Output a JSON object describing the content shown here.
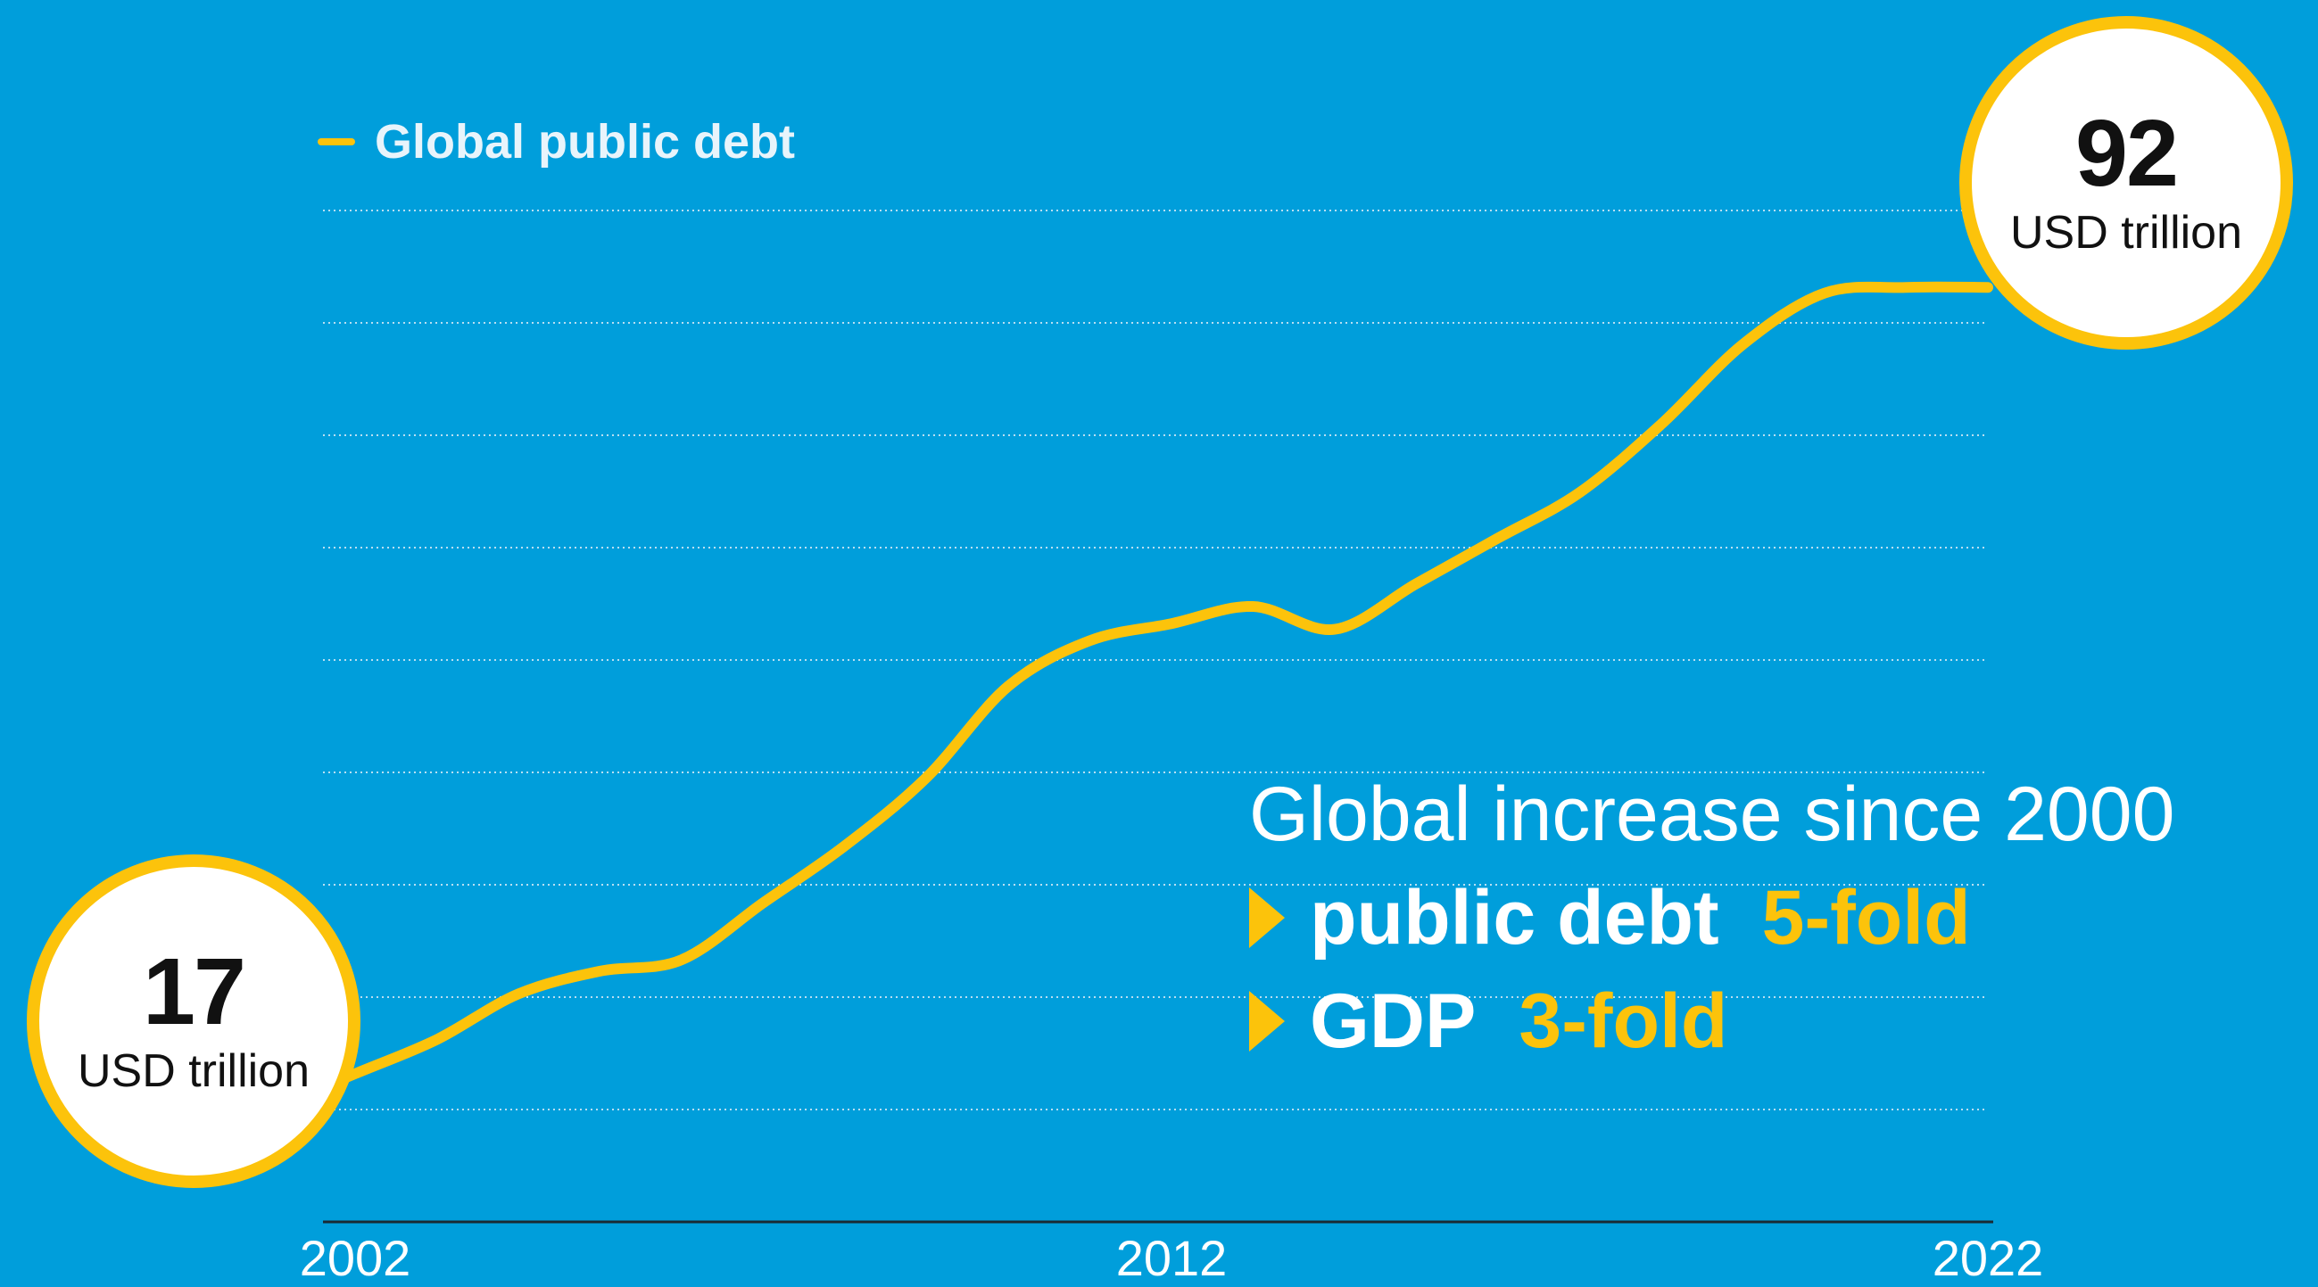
{
  "colors": {
    "background": "#009edb",
    "line": "#fcc30b",
    "bubble_fill": "#ffffff",
    "bubble_border": "#fcc30b",
    "gridline": "#b8dff2",
    "axis": "#1a2a33",
    "text_light": "#ffffff",
    "accent": "#fcc30b"
  },
  "legend": {
    "label": "Global public debt"
  },
  "start_bubble": {
    "value": "17",
    "unit": "USD trillion"
  },
  "end_bubble": {
    "value": "92",
    "unit": "USD trillion"
  },
  "callout": {
    "title": "Global increase since 2000",
    "rows": [
      {
        "label": "public debt",
        "value": "5-fold"
      },
      {
        "label": "GDP",
        "value": "3-fold"
      }
    ]
  },
  "chart_data": {
    "type": "line",
    "title": "",
    "xlabel": "",
    "ylabel": "",
    "x_ticks": [
      "2002",
      "2012",
      "2022"
    ],
    "xlim": [
      2000,
      2022
    ],
    "ylim": [
      10,
      100
    ],
    "grid": true,
    "legend_position": "top-left",
    "series": [
      {
        "name": "Global public debt",
        "x": [
          2000,
          2001,
          2002,
          2003,
          2004,
          2005,
          2006,
          2007,
          2008,
          2009,
          2010,
          2011,
          2012,
          2013,
          2014,
          2015,
          2016,
          2017,
          2018,
          2019,
          2020,
          2021,
          2022
        ],
        "y": [
          17,
          20,
          23,
          26,
          30,
          32,
          33,
          38,
          43,
          49,
          57,
          61,
          62.5,
          64,
          62,
          66,
          70,
          74,
          80,
          87,
          91.5,
          92,
          92
        ]
      }
    ]
  }
}
